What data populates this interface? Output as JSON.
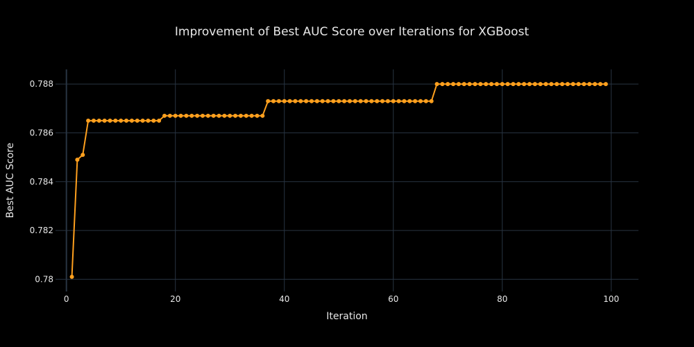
{
  "chart_data": {
    "type": "line",
    "title": "Improvement of Best AUC Score over Iterations for XGBoost",
    "xlabel": "Iteration",
    "ylabel": "Best AUC Score",
    "xlim": [
      -2,
      105
    ],
    "ylim": [
      0.7795,
      0.7886
    ],
    "grid": true,
    "x_ticks": [
      0,
      20,
      40,
      60,
      80,
      100
    ],
    "x_tick_labels": [
      "0",
      "20",
      "40",
      "60",
      "80",
      "100"
    ],
    "y_ticks": [
      0.78,
      0.782,
      0.784,
      0.786,
      0.788
    ],
    "y_tick_labels": [
      "0.78",
      "0.782",
      "0.784",
      "0.786",
      "0.788"
    ],
    "series": [
      {
        "color": "#ffa01e",
        "mode": "lines+markers",
        "x": [
          1,
          2,
          3,
          4,
          5,
          6,
          7,
          8,
          9,
          10,
          11,
          12,
          13,
          14,
          15,
          16,
          17,
          18,
          19,
          20,
          21,
          22,
          23,
          24,
          25,
          26,
          27,
          28,
          29,
          30,
          31,
          32,
          33,
          34,
          35,
          36,
          37,
          38,
          39,
          40,
          41,
          42,
          43,
          44,
          45,
          46,
          47,
          48,
          49,
          50,
          51,
          52,
          53,
          54,
          55,
          56,
          57,
          58,
          59,
          60,
          61,
          62,
          63,
          64,
          65,
          66,
          67,
          68,
          69,
          70,
          71,
          72,
          73,
          74,
          75,
          76,
          77,
          78,
          79,
          80,
          81,
          82,
          83,
          84,
          85,
          86,
          87,
          88,
          89,
          90,
          91,
          92,
          93,
          94,
          95,
          96,
          97,
          98,
          99
        ],
        "y": [
          0.7801,
          0.7849,
          0.7851,
          0.7865,
          0.7865,
          0.7865,
          0.7865,
          0.7865,
          0.7865,
          0.7865,
          0.7865,
          0.7865,
          0.7865,
          0.7865,
          0.7865,
          0.7865,
          0.7865,
          0.7867,
          0.7867,
          0.7867,
          0.7867,
          0.7867,
          0.7867,
          0.7867,
          0.7867,
          0.7867,
          0.7867,
          0.7867,
          0.7867,
          0.7867,
          0.7867,
          0.7867,
          0.7867,
          0.7867,
          0.7867,
          0.7867,
          0.7873,
          0.7873,
          0.7873,
          0.7873,
          0.7873,
          0.7873,
          0.7873,
          0.7873,
          0.7873,
          0.7873,
          0.7873,
          0.7873,
          0.7873,
          0.7873,
          0.7873,
          0.7873,
          0.7873,
          0.7873,
          0.7873,
          0.7873,
          0.7873,
          0.7873,
          0.7873,
          0.7873,
          0.7873,
          0.7873,
          0.7873,
          0.7873,
          0.7873,
          0.7873,
          0.7873,
          0.788,
          0.788,
          0.788,
          0.788,
          0.788,
          0.788,
          0.788,
          0.788,
          0.788,
          0.788,
          0.788,
          0.788,
          0.788,
          0.788,
          0.788,
          0.788,
          0.788,
          0.788,
          0.788,
          0.788,
          0.788,
          0.788,
          0.788,
          0.788,
          0.788,
          0.788,
          0.788,
          0.788,
          0.788,
          0.788,
          0.788,
          0.788
        ]
      }
    ]
  }
}
